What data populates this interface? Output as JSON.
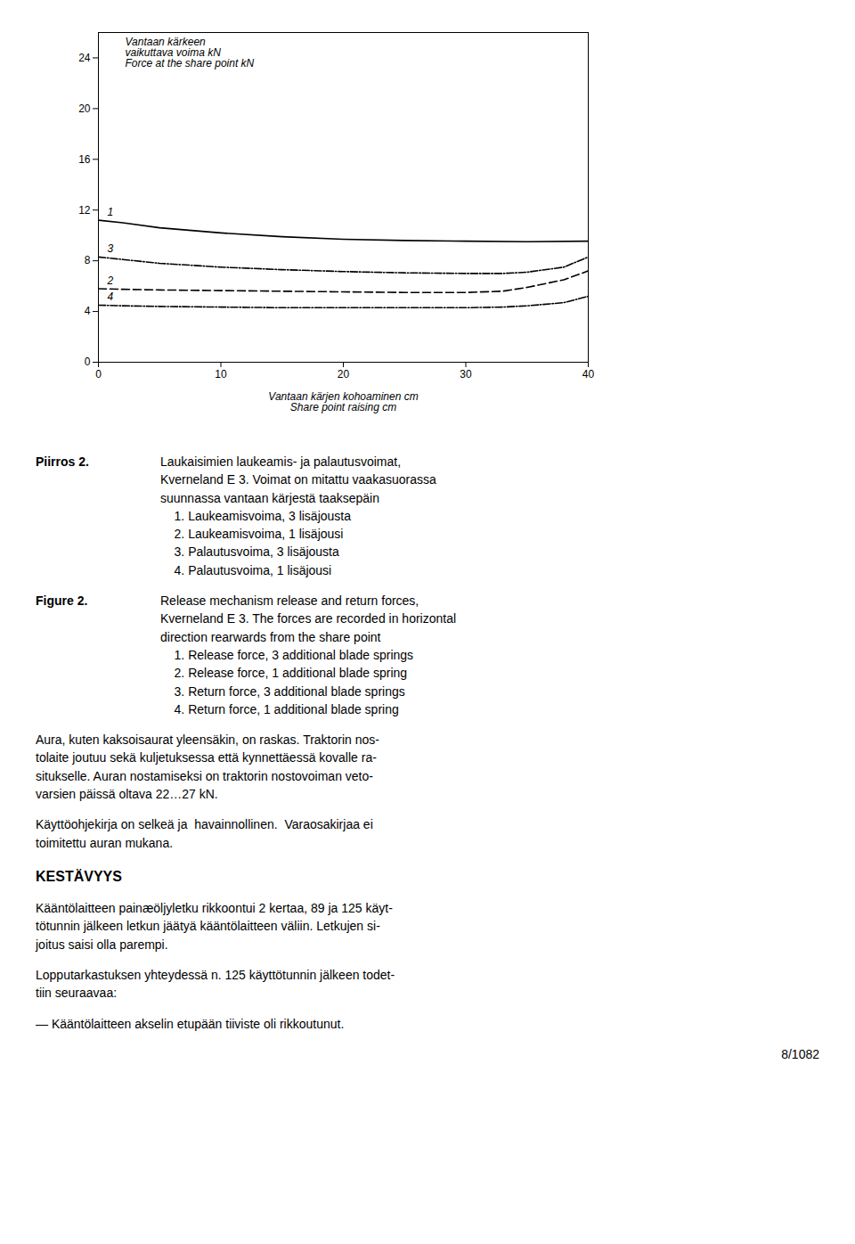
{
  "chart_data": {
    "type": "line",
    "xlabel": "Vantaan kärjen kohoaminen cm\nShare point raising cm",
    "ylabel": "Vantaan kärkeen\nvaikuttava voima kN\nForce at the share point kN",
    "xlim": [
      0,
      40
    ],
    "xticks": [
      0,
      10,
      20,
      30,
      40
    ],
    "ylim": [
      0,
      26
    ],
    "yticks": [
      0,
      4,
      8,
      12,
      16,
      20,
      24
    ],
    "grid": false,
    "series": [
      {
        "name": "1",
        "color": "#000000",
        "line_style": "solid",
        "x": [
          0,
          2,
          5,
          10,
          15,
          20,
          25,
          30,
          35,
          40
        ],
        "values": [
          11.2,
          11.0,
          10.6,
          10.2,
          9.9,
          9.7,
          9.6,
          9.55,
          9.5,
          9.55
        ]
      },
      {
        "name": "3",
        "color": "#000000",
        "line_style": "dashdot",
        "x": [
          0,
          2,
          5,
          10,
          15,
          20,
          25,
          30,
          33,
          35,
          38,
          40
        ],
        "values": [
          8.3,
          8.1,
          7.8,
          7.5,
          7.3,
          7.15,
          7.05,
          7.0,
          7.0,
          7.1,
          7.5,
          8.3
        ]
      },
      {
        "name": "2",
        "color": "#000000",
        "line_style": "dashed",
        "x": [
          0,
          2,
          5,
          10,
          15,
          20,
          25,
          30,
          33,
          35,
          38,
          40
        ],
        "values": [
          5.8,
          5.75,
          5.7,
          5.65,
          5.6,
          5.55,
          5.5,
          5.5,
          5.6,
          5.9,
          6.5,
          7.2
        ]
      },
      {
        "name": "4",
        "color": "#000000",
        "line_style": "dashdot",
        "x": [
          0,
          2,
          5,
          10,
          15,
          20,
          25,
          30,
          33,
          35,
          38,
          40
        ],
        "values": [
          4.5,
          4.45,
          4.4,
          4.35,
          4.3,
          4.3,
          4.3,
          4.3,
          4.35,
          4.45,
          4.7,
          5.2
        ]
      }
    ],
    "annotations": [
      {
        "bold": "Piirros 2.",
        "text": "Laukaisimien laukeamis- ja palautusvoimat,\nKverneland E 3. Voimat on mitattu vaakasuorassa\nsuunnassa vantaan kärjestä taaksepäin\n    1. Laukeamisvoima, 3 lisäjousta\n    2. Laukeamisvoima, 1 lisäjousi\n    3. Palautusvoima, 3 lisäjousta\n    4. Palautusvoima, 1 lisäjousi"
      },
      {
        "bold": "Figure 2.",
        "text": "Release mechanism release and return forces,\nKverneland E 3. The forces are recorded in horizontal\ndirection rearwards from the share point\n    1. Release force, 3 additional blade springs\n    2. Release force, 1 additional blade spring\n    3. Return force, 3 additional blade springs\n    4. Return force, 1 additional blade spring"
      },
      {
        "text": "Aura, kuten kaksoisaurat yleensäkin, on raskas. Traktorin nos-\ntolaite joutuu sekä kuljetuksessa että kynnettäessä kovalle ra-\nsitukselle. Auran nostamiseksi on traktorin nostovoiman veto-\nvarsien päissä oltava 22…27 kN."
      },
      {
        "text": "Käyttöohjekirja on selkeä ja  havainnollinen.  Varaosakirjaa ei\ntoimitettu auran mukana."
      },
      {
        "bold": "KESTÄVYYS"
      },
      {
        "text": "Kääntölaitteen painæöljyletku rikkoontui 2 kertaa, 89 ja 125 käyt-\ntötunnin jälkeen letkun jäätyä kääntölaitteen väliin. Letkujen si-\njoitus saisi olla parempi."
      },
      {
        "text": "Lopputarkastuksen yhteydessä n. 125 käyttötunnin jälkeen todet-\ntiin seuraavaa:"
      },
      {
        "text": "— Kääntölaitteen akselin etupään tiiviste oli rikkoutunut."
      },
      {
        "text": "8/1082"
      }
    ]
  }
}
